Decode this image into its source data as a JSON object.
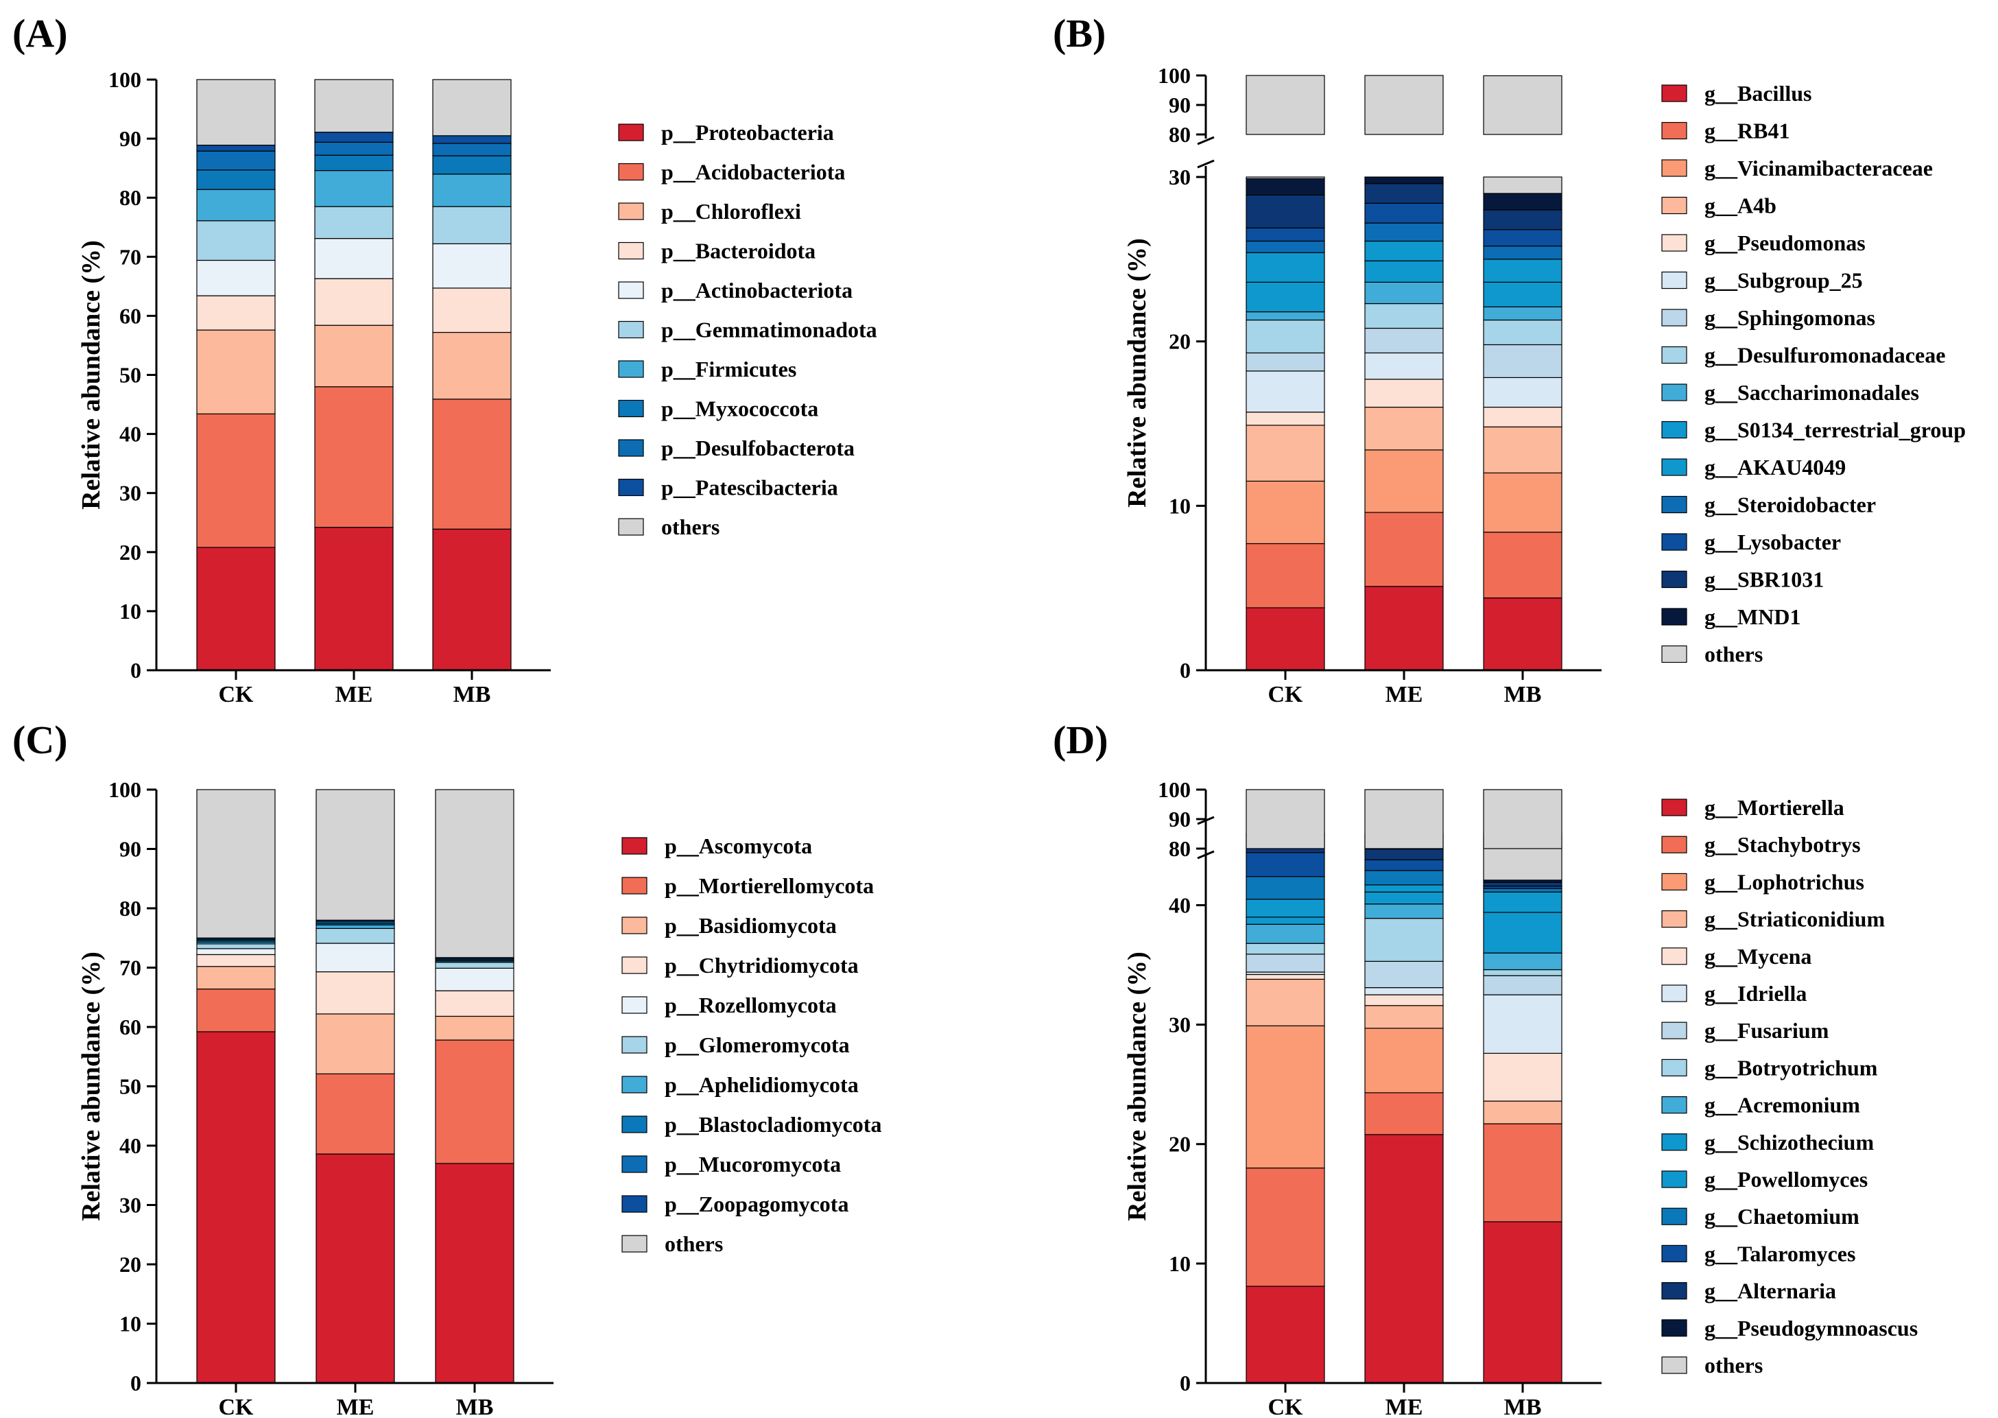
{
  "colors": {
    "red": "#d41f2f",
    "salmon": "#f26d55",
    "light_salmon": "#fb9b75",
    "peach": "#fcb99b",
    "pale_peach": "#fde1d5",
    "near_white_blue": "#e9f2f8",
    "pale_blue": "#d8e8f4",
    "light_blue": "#bcd7ea",
    "sky_blue": "#a6d4e8",
    "blue_mid": "#41acd8",
    "cerulean": "#0f98ce",
    "steel_blue": "#0a78b9",
    "blue": "#0c6db5",
    "cobalt": "#0b4f9e",
    "navy": "#0d3674",
    "dark_navy": "#06193d",
    "others_gray": "#d4d4d4",
    "axis": "#000000"
  },
  "chart_data": [
    {
      "panel_label": "(A)",
      "type": "bar",
      "stacked": true,
      "title": "",
      "xlabel": "",
      "ylabel": "Relative abundance (%)",
      "ylim": [
        0,
        100
      ],
      "yticks": [
        "0",
        "10",
        "20",
        "30",
        "40",
        "50",
        "60",
        "70",
        "80",
        "90",
        "100"
      ],
      "categories": [
        "CK",
        "ME",
        "MB"
      ],
      "series": [
        {
          "name": "p__Proteobacteria",
          "color": "#d41f2f",
          "values": [
            20.8,
            24.2,
            23.9
          ]
        },
        {
          "name": "p__Acidobacteriota",
          "color": "#f26d55",
          "values": [
            22.6,
            23.8,
            22.0
          ]
        },
        {
          "name": "p__Chloroflexi",
          "color": "#fcb99b",
          "values": [
            14.2,
            10.4,
            11.3
          ]
        },
        {
          "name": "p__Bacteroidota",
          "color": "#fde1d5",
          "values": [
            5.8,
            7.9,
            7.5
          ]
        },
        {
          "name": "p__Actinobacteriota",
          "color": "#e9f2f8",
          "values": [
            6.0,
            6.8,
            7.5
          ]
        },
        {
          "name": "p__Gemmatimonadota",
          "color": "#a6d4e8",
          "values": [
            6.7,
            5.4,
            6.3
          ]
        },
        {
          "name": "p__Firmicutes",
          "color": "#41acd8",
          "values": [
            5.3,
            6.1,
            5.5
          ]
        },
        {
          "name": "p__Myxococcota",
          "color": "#0a78b9",
          "values": [
            3.3,
            2.6,
            3.1
          ]
        },
        {
          "name": "p__Desulfobacterota",
          "color": "#0c6db5",
          "values": [
            3.2,
            2.2,
            2.1
          ]
        },
        {
          "name": "p__Patescibacteria",
          "color": "#0b4f9e",
          "values": [
            1.0,
            1.7,
            1.3
          ]
        },
        {
          "name": "others",
          "color": "#d4d4d4",
          "values": [
            11.1,
            8.9,
            9.5
          ]
        }
      ]
    },
    {
      "panel_label": "(B)",
      "type": "bar",
      "stacked": true,
      "axis_break": [
        30,
        80
      ],
      "title": "",
      "xlabel": "",
      "ylabel": "Relative abundance (%)",
      "ylim": [
        0,
        100
      ],
      "yticks": [
        "0",
        "10",
        "20",
        "30",
        "80",
        "90",
        "100"
      ],
      "categories": [
        "CK",
        "ME",
        "MB"
      ],
      "series": [
        {
          "name": "g__Bacillus",
          "color": "#d41f2f",
          "values": [
            3.8,
            5.1,
            4.4
          ]
        },
        {
          "name": "g__RB41",
          "color": "#f26d55",
          "values": [
            3.9,
            4.5,
            4.0
          ]
        },
        {
          "name": "g__Vicinamibacteraceae",
          "color": "#fb9b75",
          "values": [
            3.8,
            3.8,
            3.6
          ]
        },
        {
          "name": "g__A4b",
          "color": "#fcb99b",
          "values": [
            3.4,
            2.6,
            2.8
          ]
        },
        {
          "name": "g__Pseudomonas",
          "color": "#fde1d5",
          "values": [
            0.8,
            1.7,
            1.2
          ]
        },
        {
          "name": "g__Subgroup_25",
          "color": "#d8e8f4",
          "values": [
            2.5,
            1.6,
            1.8
          ]
        },
        {
          "name": "g__Sphingomonas",
          "color": "#bcd7ea",
          "values": [
            1.1,
            1.5,
            2.0
          ]
        },
        {
          "name": "g__Desulfuromonadaceae",
          "color": "#a6d4e8",
          "values": [
            2.0,
            1.5,
            1.5
          ]
        },
        {
          "name": "g__Saccharimonadales",
          "color": "#41acd8",
          "values": [
            0.5,
            1.3,
            0.8
          ]
        },
        {
          "name": "g__S0134_terrestrial_group",
          "color": "#0f98ce",
          "values": [
            1.8,
            1.3,
            1.5
          ]
        },
        {
          "name": "g__AKAU4049",
          "color": "#0f98ce",
          "values": [
            1.8,
            1.2,
            1.4
          ]
        },
        {
          "name": "g__Steroidobacter",
          "color": "#0c6db5",
          "values": [
            0.7,
            1.1,
            0.8
          ]
        },
        {
          "name": "g__Lysobacter",
          "color": "#0b4f9e",
          "values": [
            0.8,
            1.2,
            1.0
          ]
        },
        {
          "name": "g__SBR1031",
          "color": "#0d3674",
          "values": [
            2.0,
            1.2,
            1.2
          ]
        },
        {
          "name": "g__MND1",
          "color": "#06193d",
          "values": [
            1.0,
            1.1,
            1.0
          ]
        },
        {
          "name": "others",
          "color": "#d4d4d4",
          "values": [
            70.1,
            69.3,
            70.9
          ]
        }
      ]
    },
    {
      "panel_label": "(C)",
      "type": "bar",
      "stacked": true,
      "title": "",
      "xlabel": "",
      "ylabel": "Relative abundance (%)",
      "ylim": [
        0,
        100
      ],
      "yticks": [
        "0",
        "10",
        "20",
        "30",
        "40",
        "50",
        "60",
        "70",
        "80",
        "90",
        "100"
      ],
      "categories": [
        "CK",
        "ME",
        "MB"
      ],
      "series": [
        {
          "name": "p__Ascomycota",
          "color": "#d41f2f",
          "values": [
            59.2,
            38.6,
            37.0
          ]
        },
        {
          "name": "p__Mortierellomycota",
          "color": "#f26d55",
          "values": [
            7.2,
            13.5,
            20.8
          ]
        },
        {
          "name": "p__Basidiomycota",
          "color": "#fcb99b",
          "values": [
            3.8,
            10.1,
            4.0
          ]
        },
        {
          "name": "p__Chytridiomycota",
          "color": "#fde1d5",
          "values": [
            2.0,
            7.1,
            4.3
          ]
        },
        {
          "name": "p__Rozellomycota",
          "color": "#e9f2f8",
          "values": [
            1.0,
            4.8,
            3.8
          ]
        },
        {
          "name": "p__Glomeromycota",
          "color": "#a6d4e8",
          "values": [
            0.8,
            2.5,
            1.0
          ]
        },
        {
          "name": "p__Aphelidiomycota",
          "color": "#41acd8",
          "values": [
            0.3,
            0.6,
            0.2
          ]
        },
        {
          "name": "p__Blastocladiomycota",
          "color": "#0a78b9",
          "values": [
            0.3,
            0.3,
            0.2
          ]
        },
        {
          "name": "p__Mucoromycota",
          "color": "#0c6db5",
          "values": [
            0.2,
            0.3,
            0.2
          ]
        },
        {
          "name": "p__Zoopagomycota",
          "color": "#0b4f9e",
          "values": [
            0.2,
            0.2,
            0.2
          ]
        },
        {
          "name": "others",
          "color": "#d4d4d4",
          "values": [
            25.0,
            22.0,
            28.3
          ]
        }
      ]
    },
    {
      "panel_label": "(D)",
      "type": "bar",
      "stacked": true,
      "axis_break": [
        46,
        80
      ],
      "title": "",
      "xlabel": "",
      "ylabel": "Relative abundance (%)",
      "ylim": [
        0,
        100
      ],
      "yticks": [
        "0",
        "10",
        "20",
        "30",
        "40",
        "80",
        "90",
        "100"
      ],
      "categories": [
        "CK",
        "ME",
        "MB"
      ],
      "series": [
        {
          "name": "g__Mortierella",
          "color": "#d41f2f",
          "values": [
            8.1,
            20.8,
            13.5
          ]
        },
        {
          "name": "g__Stachybotrys",
          "color": "#f26d55",
          "values": [
            9.9,
            3.5,
            8.2
          ]
        },
        {
          "name": "g__Lophotrichus",
          "color": "#fb9b75",
          "values": [
            11.9,
            5.4,
            0.0
          ]
        },
        {
          "name": "g__Striaticonidium",
          "color": "#fcb99b",
          "values": [
            3.9,
            1.9,
            1.9
          ]
        },
        {
          "name": "g__Mycena",
          "color": "#fde1d5",
          "values": [
            0.4,
            0.9,
            4.0
          ]
        },
        {
          "name": "g__Idriella",
          "color": "#d8e8f4",
          "values": [
            0.2,
            0.6,
            4.9
          ]
        },
        {
          "name": "g__Fusarium",
          "color": "#bcd7ea",
          "values": [
            1.5,
            2.2,
            1.6
          ]
        },
        {
          "name": "g__Botryotrichum",
          "color": "#a6d4e8",
          "values": [
            0.9,
            3.6,
            0.5
          ]
        },
        {
          "name": "g__Acremonium",
          "color": "#41acd8",
          "values": [
            1.6,
            1.2,
            1.4
          ]
        },
        {
          "name": "g__Schizothecium",
          "color": "#0f98ce",
          "values": [
            0.6,
            1.0,
            3.4
          ]
        },
        {
          "name": "g__Powellomyces",
          "color": "#0f98ce",
          "values": [
            1.5,
            0.6,
            1.7
          ]
        },
        {
          "name": "g__Chaetomium",
          "color": "#0a78b9",
          "values": [
            1.9,
            1.2,
            0.3
          ]
        },
        {
          "name": "g__Talaromyces",
          "color": "#0b4f9e",
          "values": [
            2.0,
            0.9,
            0.2
          ]
        },
        {
          "name": "g__Alternaria",
          "color": "#0d3674",
          "values": [
            1.5,
            0.9,
            0.3
          ]
        },
        {
          "name": "g__Pseudogymnoascus",
          "color": "#06193d",
          "values": [
            1.3,
            1.1,
            0.2
          ]
        },
        {
          "name": "others",
          "color": "#d4d4d4",
          "values": [
            52.8,
            56.2,
            57.9
          ]
        }
      ]
    }
  ]
}
